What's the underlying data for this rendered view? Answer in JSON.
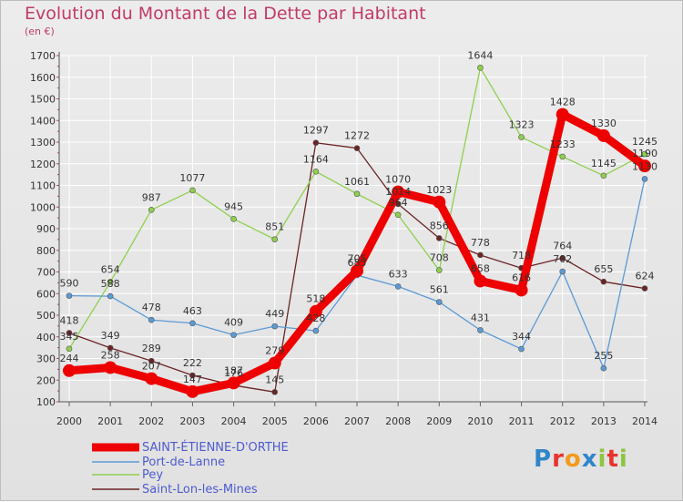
{
  "header": {
    "title": "Evolution du Montant de la Dette par Habitant",
    "unit": "(en €)"
  },
  "logo": {
    "text": "Proxiti"
  },
  "colors": {
    "title": "#c23a6a",
    "legend_text": "#4d5bd0",
    "grid": "#ffffff",
    "axis": "#555555"
  },
  "chart_data": {
    "type": "line",
    "title": "Evolution du Montant de la Dette par Habitant",
    "subtitle": "(en €)",
    "xlabel": "",
    "ylabel": "",
    "ylim": [
      100,
      1700
    ],
    "yticks": [
      100,
      200,
      300,
      400,
      500,
      600,
      700,
      800,
      900,
      1000,
      1100,
      1200,
      1300,
      1400,
      1500,
      1600,
      1700
    ],
    "x": [
      2000,
      2001,
      2002,
      2003,
      2004,
      2005,
      2006,
      2007,
      2008,
      2009,
      2010,
      2011,
      2012,
      2013,
      2014
    ],
    "grid": true,
    "legend_position": "bottom-left",
    "series": [
      {
        "name": "SAINT-ÉTIENNE-D'ORTHE",
        "color": "#ee0000",
        "values": [
          244,
          258,
          207,
          147,
          187,
          279,
          518,
          705,
          1070,
          1023,
          658,
          616,
          1428,
          1330,
          1190
        ]
      },
      {
        "name": "Port-de-Lanne",
        "color": "#5b9bd5",
        "values": [
          590,
          588,
          478,
          463,
          409,
          449,
          428,
          685,
          633,
          561,
          431,
          344,
          702,
          255,
          1130
        ]
      },
      {
        "name": "Pey",
        "color": "#8ed04e",
        "values": [
          345,
          654,
          987,
          1077,
          945,
          851,
          1164,
          1061,
          964,
          708,
          1644,
          1323,
          1233,
          1145,
          1245
        ]
      },
      {
        "name": "Saint-Lon-les-Mines",
        "color": "#6b2426",
        "values": [
          418,
          349,
          289,
          222,
          176,
          145,
          1297,
          1272,
          1014,
          856,
          778,
          718,
          764,
          655,
          624
        ]
      }
    ],
    "value_labels": [
      [
        "244",
        "258",
        "207",
        "147",
        "187",
        "279",
        "518",
        "705",
        "1070",
        "1023",
        "658",
        "616",
        "1428",
        "1330",
        "1190"
      ],
      [
        "590",
        "588",
        "478",
        "463",
        "409",
        "449",
        "428",
        "685",
        "633",
        "561",
        "431",
        "344",
        "702",
        "255",
        "1130"
      ],
      [
        "345",
        "654",
        "987",
        "1077",
        "945",
        "851",
        "1164",
        "1061",
        "964",
        "708",
        "1644",
        "1323",
        "1233",
        "1145",
        "1245"
      ],
      [
        "418",
        "349",
        "289",
        "222",
        "176",
        "145",
        "1297",
        "1272",
        "1014",
        "856",
        "778",
        "718",
        "764",
        "655",
        "624"
      ]
    ]
  }
}
